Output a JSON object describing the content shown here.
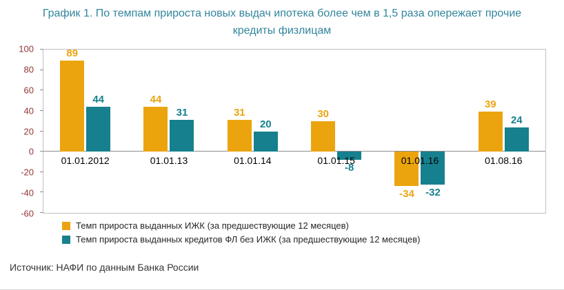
{
  "title": "График 1. По темпам прироста новых выдач ипотека более чем в 1,5 раза опережает прочие кредиты физлицам",
  "source": "Источник: НАФИ по данным Банка России",
  "colors": {
    "title": "#31859C",
    "axis_labels": "#943634",
    "series1": "#EBA40E",
    "series2": "#16808E",
    "axis_line": "#8C8C8C",
    "plot_border": "#BFBFBF"
  },
  "chart_data": {
    "type": "bar",
    "categories": [
      "01.01.2012",
      "01.01.13",
      "01.01.14",
      "01.01.15",
      "01.01.16",
      "01.08.16"
    ],
    "series": [
      {
        "name": "Темп прироста выданных ИЖК (за предшествующие 12 месяцев)",
        "color": "#EBA40E",
        "values": [
          89,
          44,
          31,
          30,
          -34,
          39
        ]
      },
      {
        "name": "Темп прироста выданных кредитов ФЛ без ИЖК (за предшествующие 12 месяцев)",
        "color": "#16808E",
        "values": [
          44,
          31,
          20,
          -8,
          -32,
          24
        ]
      }
    ],
    "ylim": [
      -60,
      100
    ],
    "yticks": [
      100,
      80,
      60,
      40,
      20,
      0,
      -20,
      -40,
      -60
    ],
    "grid": false,
    "legend_position": "bottom-left",
    "value_labels": true
  }
}
